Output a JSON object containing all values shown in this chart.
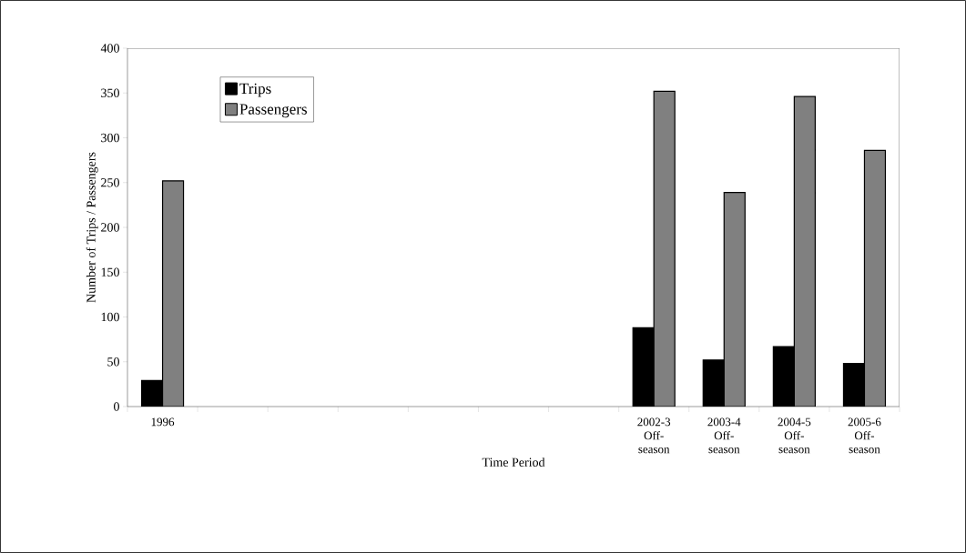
{
  "chart_data": {
    "type": "bar",
    "xlabel": "Time Period",
    "ylabel": "Number of Trips / Passengers",
    "categories": [
      "1996",
      null,
      null,
      null,
      null,
      null,
      null,
      "2002-3 Off-season",
      "2003-4 Off-season",
      "2004-5 Off-season",
      "2005-6 Off-season"
    ],
    "series": [
      {
        "name": "Trips",
        "color": "#000000",
        "values": [
          29,
          null,
          null,
          null,
          null,
          null,
          null,
          88,
          52,
          67,
          48
        ]
      },
      {
        "name": "Passengers",
        "color": "#808080",
        "values": [
          252,
          null,
          null,
          null,
          null,
          null,
          null,
          352,
          239,
          346,
          286
        ]
      }
    ],
    "ylim": [
      0,
      400
    ],
    "yticks": [
      0,
      50,
      100,
      150,
      200,
      250,
      300,
      350,
      400
    ],
    "grid": false,
    "legend": "top left"
  }
}
